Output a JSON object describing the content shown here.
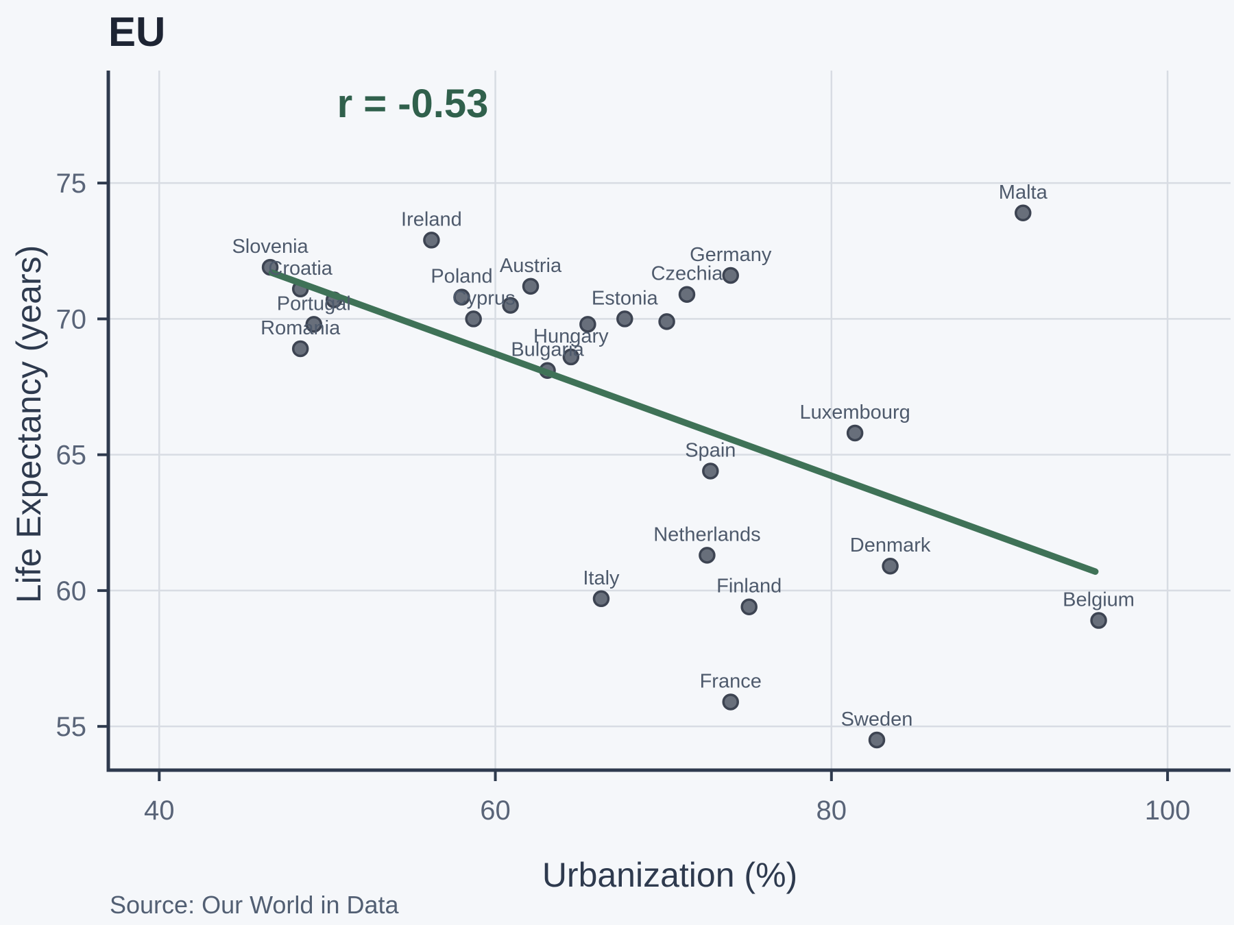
{
  "chart_data": {
    "type": "scatter",
    "title": "EU",
    "annotation": "r = -0.53",
    "xlabel": "Urbanization (%)",
    "ylabel": "Life Expectancy (years)",
    "source": "Source: Our World in Data",
    "x_ticks": [
      40,
      60,
      80,
      100
    ],
    "y_ticks": [
      55,
      60,
      65,
      70,
      75
    ],
    "xlim": [
      36.97,
      103.75
    ],
    "ylim": [
      53.39,
      79.14
    ],
    "grid": true,
    "legend": "none",
    "trend_line": {
      "x1": 46.7,
      "y1": 71.7,
      "x2": 95.7,
      "y2": 60.7
    },
    "points": [
      {
        "label": "Slovenia",
        "x": 46.6,
        "y": 71.9
      },
      {
        "label": "Croatia",
        "x": 48.4,
        "y": 71.1
      },
      {
        "label": "",
        "x": 50.4,
        "y": 70.7
      },
      {
        "label": "Portugal",
        "x": 49.2,
        "y": 69.8
      },
      {
        "label": "Romania",
        "x": 48.4,
        "y": 68.9
      },
      {
        "label": "Ireland",
        "x": 56.2,
        "y": 72.9
      },
      {
        "label": "Poland",
        "x": 58.0,
        "y": 70.8
      },
      {
        "label": "Cyprus",
        "x": 58.7,
        "y": 70.0,
        "label_dx": 15
      },
      {
        "label": "",
        "x": 60.9,
        "y": 70.5
      },
      {
        "label": "Austria",
        "x": 62.1,
        "y": 71.2
      },
      {
        "label": "Bulgaria",
        "x": 63.1,
        "y": 68.1
      },
      {
        "label": "Hungary",
        "x": 64.5,
        "y": 68.6
      },
      {
        "label": "",
        "x": 65.5,
        "y": 69.8
      },
      {
        "label": "Estonia",
        "x": 67.7,
        "y": 70.0
      },
      {
        "label": "",
        "x": 70.2,
        "y": 69.9
      },
      {
        "label": "Czechia",
        "x": 71.4,
        "y": 70.9
      },
      {
        "label": "Germany",
        "x": 74.0,
        "y": 71.6
      },
      {
        "label": "Italy",
        "x": 66.3,
        "y": 59.7
      },
      {
        "label": "Spain",
        "x": 72.8,
        "y": 64.4
      },
      {
        "label": "Netherlands",
        "x": 72.6,
        "y": 61.3
      },
      {
        "label": "Finland",
        "x": 75.1,
        "y": 59.4
      },
      {
        "label": "France",
        "x": 74.0,
        "y": 55.9
      },
      {
        "label": "Luxembourg",
        "x": 81.4,
        "y": 65.8
      },
      {
        "label": "Sweden",
        "x": 82.7,
        "y": 54.5
      },
      {
        "label": "Denmark",
        "x": 83.5,
        "y": 60.9
      },
      {
        "label": "Malta",
        "x": 91.4,
        "y": 73.9
      },
      {
        "label": "Belgium",
        "x": 95.9,
        "y": 58.9
      }
    ],
    "colors": {
      "background": "#f5f7fa",
      "gridline": "#d8dce3",
      "axis": "#2e3a4e",
      "tick_label": "#596478",
      "trend": "#3f7257",
      "annotation_green": "#30604c",
      "point_fill": "#5b6370",
      "point_stroke": "#3d4452",
      "country_label": "#4e5a6c",
      "title_color": "#1d2433"
    }
  }
}
